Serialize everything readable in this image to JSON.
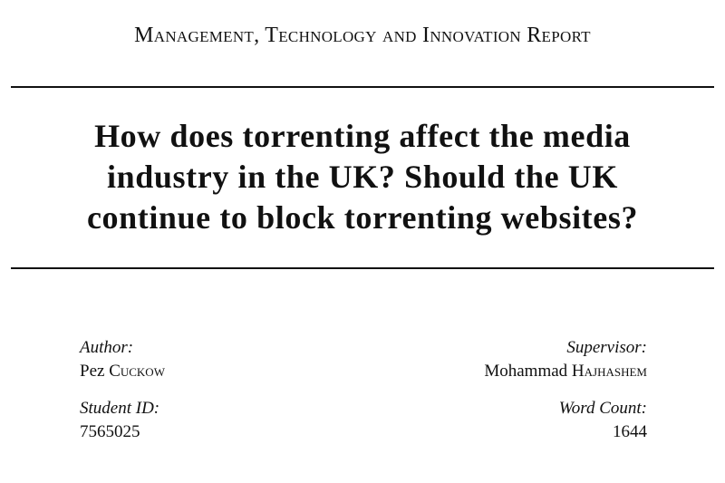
{
  "header": {
    "title": "Management, Technology and Innovation Report"
  },
  "title": {
    "lines": [
      "How does torrenting affect the media",
      "industry in the UK? Should the UK",
      "continue to block torrenting websites?"
    ]
  },
  "author": {
    "label": "Author:",
    "first": "Pez",
    "last": "Cuckow"
  },
  "supervisor": {
    "label": "Supervisor:",
    "first": "Mohammad",
    "last": "Hajhashem"
  },
  "student_id": {
    "label": "Student ID:",
    "value": "7565025"
  },
  "word_count": {
    "label": "Word Count:",
    "value": "1644"
  }
}
